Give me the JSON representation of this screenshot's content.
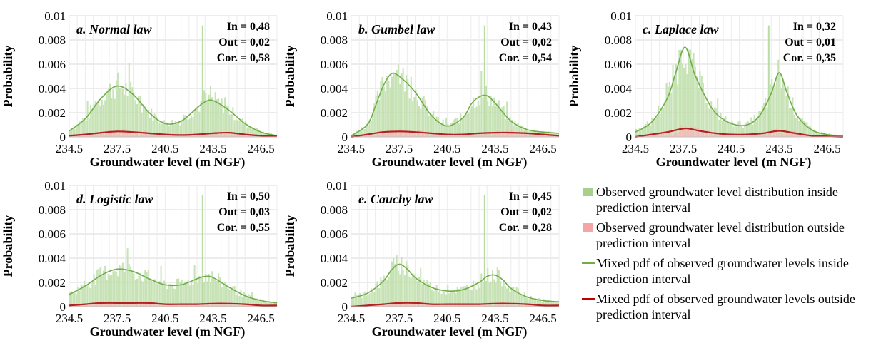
{
  "chart_data": [
    {
      "type": "bar",
      "title": "a. Normal law",
      "stats": [
        "In = 0,48",
        "Out = 0,02",
        "Cor. = 0,58"
      ],
      "xlabel": "Groundwater level (m NGF)",
      "ylabel": "Probability",
      "xlim": [
        234.5,
        247.5
      ],
      "ylim": [
        0,
        0.01
      ],
      "xticks": [
        "234.5",
        "237.5",
        "240.5",
        "243.5",
        "246.5"
      ],
      "yticks": [
        "0",
        "0.002",
        "0.004",
        "0.006",
        "0.008",
        "0.01"
      ],
      "series": [
        {
          "name": "Mixed pdf of observed groundwater levels inside prediction interval",
          "x": [
            234.5,
            235.5,
            236.5,
            237.5,
            238.5,
            239.5,
            240.5,
            241.5,
            242.5,
            243.0,
            243.5,
            244.5,
            245.5,
            246.5,
            247.5
          ],
          "values": [
            0.0005,
            0.0015,
            0.0032,
            0.0042,
            0.0035,
            0.002,
            0.0011,
            0.0013,
            0.0024,
            0.0029,
            0.003,
            0.0022,
            0.0011,
            0.0004,
            0.0001
          ]
        },
        {
          "name": "Mixed pdf of observed groundwater levels outside prediction interval",
          "x": [
            234.5,
            235.5,
            236.5,
            237.5,
            238.5,
            239.5,
            240.5,
            241.5,
            242.5,
            243.5,
            244.5,
            245.5,
            246.5,
            247.5
          ],
          "values": [
            0.0001,
            0.0002,
            0.00035,
            0.00045,
            0.0004,
            0.0003,
            0.0002,
            0.00015,
            0.0002,
            0.0003,
            0.00035,
            0.0002,
            0.0001,
            5e-05
          ]
        }
      ]
    },
    {
      "type": "bar",
      "title": "b. Gumbel law",
      "stats": [
        "In = 0,43",
        "Out = 0,02",
        "Cor. = 0,54"
      ],
      "xlabel": "Groundwater level (m NGF)",
      "ylabel": "Probability",
      "xlim": [
        234.5,
        247.5
      ],
      "ylim": [
        0,
        0.01
      ],
      "xticks": [
        "234.5",
        "237.5",
        "240.5",
        "243.5",
        "246.5"
      ],
      "yticks": [
        "0",
        "0.002",
        "0.004",
        "0.006",
        "0.008",
        "0.01"
      ],
      "series": [
        {
          "name": "Mixed pdf of observed groundwater levels inside prediction interval",
          "x": [
            234.5,
            235.5,
            236.0,
            236.5,
            237.0,
            237.5,
            238.5,
            239.5,
            240.5,
            241.5,
            242.0,
            242.5,
            243.0,
            243.5,
            244.5,
            245.5,
            246.5,
            247.5
          ],
          "values": [
            0.0001,
            0.001,
            0.0025,
            0.0042,
            0.0052,
            0.005,
            0.0037,
            0.0018,
            0.0009,
            0.0016,
            0.0027,
            0.0033,
            0.0034,
            0.0028,
            0.0013,
            0.0006,
            0.0004,
            0.0003
          ]
        },
        {
          "name": "Mixed pdf of observed groundwater levels outside prediction interval",
          "x": [
            234.5,
            235.5,
            236.5,
            237.5,
            238.5,
            239.5,
            240.5,
            241.5,
            242.5,
            243.5,
            244.5,
            245.5,
            246.5,
            247.5
          ],
          "values": [
            0.0,
            0.0002,
            0.0004,
            0.00045,
            0.0004,
            0.0003,
            0.0002,
            0.0002,
            0.0003,
            0.00035,
            0.00035,
            0.0003,
            0.0002,
            0.0001
          ]
        }
      ]
    },
    {
      "type": "bar",
      "title": "c. Laplace law",
      "stats": [
        "In = 0,32",
        "Out = 0,01",
        "Cor. = 0,35"
      ],
      "xlabel": "Groundwater level (m NGF)",
      "ylabel": "Probability",
      "xlim": [
        234.5,
        247.5
      ],
      "ylim": [
        0,
        0.01
      ],
      "xticks": [
        "234.5",
        "237.5",
        "240.5",
        "243.5",
        "246.5"
      ],
      "yticks": [
        "0",
        "0.002",
        "0.004",
        "0.006",
        "0.008",
        "0.01"
      ],
      "series": [
        {
          "name": "Mixed pdf of observed groundwater levels inside prediction interval",
          "x": [
            234.5,
            235.5,
            236.5,
            237.0,
            237.6,
            238.2,
            238.8,
            239.5,
            240.5,
            241.5,
            242.3,
            243.0,
            243.5,
            244.0,
            244.6,
            245.5,
            246.5,
            247.5
          ],
          "values": [
            0.0004,
            0.0012,
            0.0032,
            0.0052,
            0.0074,
            0.0052,
            0.0035,
            0.002,
            0.0011,
            0.001,
            0.0018,
            0.0036,
            0.0053,
            0.0036,
            0.0018,
            0.0006,
            0.0002,
            0.0001
          ]
        },
        {
          "name": "Mixed pdf of observed groundwater levels outside prediction interval",
          "x": [
            234.5,
            235.5,
            236.5,
            237.6,
            238.5,
            239.5,
            240.5,
            241.5,
            242.5,
            243.5,
            244.5,
            245.5,
            246.5,
            247.5
          ],
          "values": [
            0.0,
            0.0002,
            0.0004,
            0.0007,
            0.0005,
            0.0003,
            0.0002,
            0.0002,
            0.0003,
            0.0005,
            0.0003,
            0.0001,
            5e-05,
            0.0
          ]
        }
      ]
    },
    {
      "type": "bar",
      "title": "d. Logistic law",
      "stats": [
        "In = 0,50",
        "Out = 0,03",
        "Cor. = 0,55"
      ],
      "xlabel": "Groundwater level (m NGF)",
      "ylabel": "Probability",
      "xlim": [
        234.5,
        247.5
      ],
      "ylim": [
        0,
        0.01
      ],
      "xticks": [
        "234.5",
        "237.5",
        "240.5",
        "243.5",
        "246.5"
      ],
      "yticks": [
        "0",
        "0.002",
        "0.004",
        "0.006",
        "0.008",
        "0.01"
      ],
      "series": [
        {
          "name": "Mixed pdf of observed groundwater levels inside prediction interval",
          "x": [
            234.5,
            235.5,
            236.5,
            237.5,
            238.5,
            239.5,
            240.5,
            241.5,
            242.5,
            243.0,
            243.5,
            244.5,
            245.5,
            246.5,
            247.5
          ],
          "values": [
            0.001,
            0.0017,
            0.0026,
            0.0031,
            0.0029,
            0.0023,
            0.0018,
            0.0018,
            0.0023,
            0.0025,
            0.0024,
            0.0016,
            0.0009,
            0.0005,
            0.0003
          ]
        },
        {
          "name": "Mixed pdf of observed groundwater levels outside prediction interval",
          "x": [
            234.5,
            235.5,
            236.5,
            237.5,
            238.5,
            239.5,
            240.5,
            241.5,
            242.5,
            243.5,
            244.5,
            245.5,
            246.5,
            247.5
          ],
          "values": [
            0.0001,
            0.0002,
            0.0003,
            0.0003,
            0.0003,
            0.0003,
            0.0002,
            0.0002,
            0.0002,
            0.00025,
            0.00025,
            0.0002,
            0.0001,
            0.0001
          ]
        }
      ]
    },
    {
      "type": "bar",
      "title": "e. Cauchy law",
      "stats": [
        "In = 0,45",
        "Out = 0,02",
        "Cor. = 0,28"
      ],
      "xlabel": "Groundwater level (m NGF)",
      "ylabel": "Probability",
      "xlim": [
        234.5,
        247.5
      ],
      "ylim": [
        0,
        0.01
      ],
      "xticks": [
        "234.5",
        "237.5",
        "240.5",
        "243.5",
        "246.5"
      ],
      "yticks": [
        "0",
        "0.002",
        "0.004",
        "0.006",
        "0.008",
        "0.01"
      ],
      "series": [
        {
          "name": "Mixed pdf of observed groundwater levels inside prediction interval",
          "x": [
            234.5,
            235.5,
            236.5,
            237.0,
            237.5,
            238.0,
            238.5,
            239.5,
            240.5,
            241.5,
            242.5,
            243.0,
            243.5,
            244.0,
            244.5,
            245.5,
            246.5,
            247.5
          ],
          "values": [
            0.0007,
            0.0011,
            0.0021,
            0.003,
            0.0035,
            0.0031,
            0.0024,
            0.0016,
            0.0013,
            0.0014,
            0.002,
            0.0025,
            0.0026,
            0.0022,
            0.0015,
            0.0008,
            0.0005,
            0.0004
          ]
        },
        {
          "name": "Mixed pdf of observed groundwater levels outside prediction interval",
          "x": [
            234.5,
            235.5,
            236.5,
            237.5,
            238.5,
            239.5,
            240.5,
            241.5,
            242.5,
            243.5,
            244.5,
            245.5,
            246.5,
            247.5
          ],
          "values": [
            0.0,
            0.0001,
            0.0002,
            0.0003,
            0.0003,
            0.0002,
            0.0002,
            0.0002,
            0.0002,
            0.00025,
            0.00025,
            0.0002,
            0.0001,
            0.0001
          ]
        }
      ]
    }
  ],
  "legend": {
    "items": [
      {
        "label": "Observed groundwater level distribution inside prediction interval",
        "kind": "box",
        "color": "#a8d08d"
      },
      {
        "label": "Observed groundwater level distribution outside prediction interval",
        "kind": "box",
        "color": "#f4a6a6"
      },
      {
        "label": "Mixed pdf of observed groundwater levels inside prediction interval",
        "kind": "line",
        "color": "#70ad47"
      },
      {
        "label": "Mixed pdf of observed groundwater levels outside prediction interval",
        "kind": "line",
        "color": "#c00000"
      }
    ]
  },
  "colors": {
    "hist_inside": "#b9dca4",
    "hist_outside": "#f4b8b8",
    "pdf_inside": "#70ad47",
    "pdf_outside": "#b22222",
    "grid": "#d9d9d9"
  }
}
